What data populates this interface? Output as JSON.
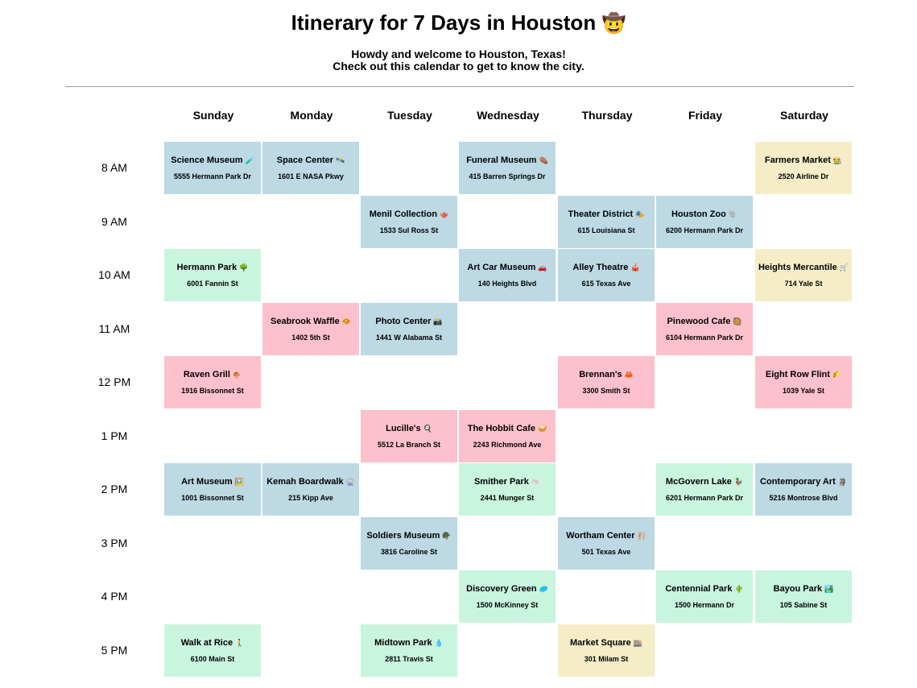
{
  "header": {
    "title": "Itinerary for 7 Days in Houston",
    "title_icon": "🤠",
    "subtitle_line1": "Howdy and welcome to Houston, Texas!",
    "subtitle_line2": "Check out this calendar to get to know the city."
  },
  "days": [
    "Sunday",
    "Monday",
    "Tuesday",
    "Wednesday",
    "Thursday",
    "Friday",
    "Saturday"
  ],
  "times": [
    "8 AM",
    "9 AM",
    "10 AM",
    "11 AM",
    "12 PM",
    "1 PM",
    "2 PM",
    "3 PM",
    "4 PM",
    "5 PM"
  ],
  "category_colors": {
    "museum": "#bcd9e4",
    "food": "#fcc1cc",
    "park": "#c9f4de",
    "shop": "#f5edc7"
  },
  "events": [
    {
      "day": 0,
      "time": 0,
      "category": "museum",
      "name": "Science Museum",
      "icon": "🧪",
      "address": "5555 Hermann Park Dr"
    },
    {
      "day": 1,
      "time": 0,
      "category": "museum",
      "name": "Space Center",
      "icon": "🛰️",
      "address": "1601 E NASA Pkwy"
    },
    {
      "day": 3,
      "time": 0,
      "category": "museum",
      "name": "Funeral Museum",
      "icon": "⚰️",
      "address": "415 Barren Springs Dr"
    },
    {
      "day": 6,
      "time": 0,
      "category": "shop",
      "name": "Farmers Market",
      "icon": "🧑‍🌾",
      "address": "2520 Airline Dr"
    },
    {
      "day": 2,
      "time": 1,
      "category": "museum",
      "name": "Menil Collection",
      "icon": "🫖",
      "address": "1533 Sul Ross St"
    },
    {
      "day": 4,
      "time": 1,
      "category": "museum",
      "name": "Theater District",
      "icon": "🎭",
      "address": "615 Louisiana St"
    },
    {
      "day": 5,
      "time": 1,
      "category": "museum",
      "name": "Houston Zoo",
      "icon": "🐘",
      "address": "6200 Hermann Park Dr"
    },
    {
      "day": 0,
      "time": 2,
      "category": "park",
      "name": "Hermann Park",
      "icon": "🌳",
      "address": "6001 Fannin St"
    },
    {
      "day": 3,
      "time": 2,
      "category": "museum",
      "name": "Art Car Museum",
      "icon": "🚗",
      "address": "140 Heights Blvd"
    },
    {
      "day": 4,
      "time": 2,
      "category": "museum",
      "name": "Alley Theatre",
      "icon": "🎪",
      "address": "615 Texas Ave"
    },
    {
      "day": 6,
      "time": 2,
      "category": "shop",
      "name": "Heights Mercantile",
      "icon": "🛒",
      "address": "714 Yale St"
    },
    {
      "day": 1,
      "time": 3,
      "category": "food",
      "name": "Seabrook Waffle",
      "icon": "🧇",
      "address": "1402 5th St"
    },
    {
      "day": 2,
      "time": 3,
      "category": "museum",
      "name": "Photo Center",
      "icon": "📸",
      "address": "1441 W Alabama St"
    },
    {
      "day": 5,
      "time": 3,
      "category": "food",
      "name": "Pinewood Cafe",
      "icon": "🥘",
      "address": "6104 Hermann Park Dr"
    },
    {
      "day": 0,
      "time": 4,
      "category": "food",
      "name": "Raven Grill",
      "icon": "🍖",
      "address": "1916 Bissonnet St"
    },
    {
      "day": 4,
      "time": 4,
      "category": "food",
      "name": "Brennan's",
      "icon": "🦀",
      "address": "3300 Smith St"
    },
    {
      "day": 6,
      "time": 4,
      "category": "food",
      "name": "Eight Row Flint",
      "icon": "🌮",
      "address": "1039 Yale St"
    },
    {
      "day": 2,
      "time": 5,
      "category": "food",
      "name": "Lucille's",
      "icon": "🍳",
      "address": "5512 La Branch St"
    },
    {
      "day": 3,
      "time": 5,
      "category": "food",
      "name": "The Hobbit Cafe",
      "icon": "🥪",
      "address": "2243 Richmond Ave"
    },
    {
      "day": 0,
      "time": 6,
      "category": "museum",
      "name": "Art Museum",
      "icon": "🖼️",
      "address": "1001 Bissonnet St"
    },
    {
      "day": 1,
      "time": 6,
      "category": "museum",
      "name": "Kemah Boardwalk",
      "icon": "🎡",
      "address": "215 Kipp Ave"
    },
    {
      "day": 3,
      "time": 6,
      "category": "park",
      "name": "Smither Park",
      "icon": "🐚",
      "address": "2441 Munger St"
    },
    {
      "day": 5,
      "time": 6,
      "category": "park",
      "name": "McGovern Lake",
      "icon": "🦆",
      "address": "6201 Hermann Park Dr"
    },
    {
      "day": 6,
      "time": 6,
      "category": "museum",
      "name": "Contemporary Art",
      "icon": "🗿",
      "address": "5216 Montrose Blvd"
    },
    {
      "day": 2,
      "time": 7,
      "category": "museum",
      "name": "Soldiers Museum",
      "icon": "🪖",
      "address": "3816 Caroline St"
    },
    {
      "day": 4,
      "time": 7,
      "category": "museum",
      "name": "Wortham Center",
      "icon": "🩰",
      "address": "501 Texas Ave"
    },
    {
      "day": 3,
      "time": 8,
      "category": "park",
      "name": "Discovery Green",
      "icon": "🥏",
      "address": "1500 McKinney St"
    },
    {
      "day": 5,
      "time": 8,
      "category": "park",
      "name": "Centennial Park",
      "icon": "🌵",
      "address": "1500 Hermann Dr"
    },
    {
      "day": 6,
      "time": 8,
      "category": "park",
      "name": "Bayou Park",
      "icon": "🏞️",
      "address": "105 Sabine St"
    },
    {
      "day": 0,
      "time": 9,
      "category": "park",
      "name": "Walk at Rice",
      "icon": "🚶",
      "address": "6100 Main St"
    },
    {
      "day": 2,
      "time": 9,
      "category": "park",
      "name": "Midtown Park",
      "icon": "💧",
      "address": "2811 Travis St"
    },
    {
      "day": 4,
      "time": 9,
      "category": "shop",
      "name": "Market Square",
      "icon": "🏬",
      "address": "301 Milam St"
    }
  ]
}
